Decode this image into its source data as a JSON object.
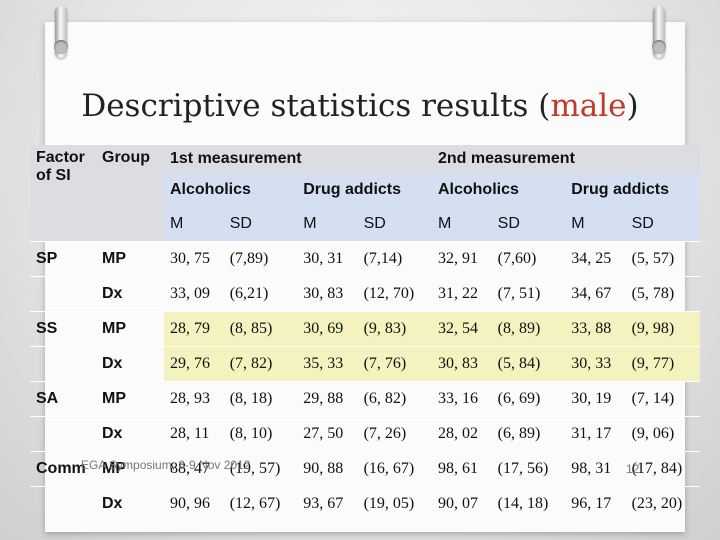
{
  "title": {
    "main": "Descriptive statistics results (",
    "highlight": "male",
    "end": ")"
  },
  "header": {
    "factor": "Factor of SI",
    "group": "Group",
    "m1": "1st measurement",
    "m2": "2nd measurement",
    "alc1": "Alcoholics",
    "drug1": "Drug addicts",
    "alc2": "Alcoholics",
    "drug2": "Drug addicts",
    "M": "M",
    "SD": "SD"
  },
  "rows": [
    {
      "factor": "SP",
      "group": "MP",
      "v": [
        "30, 75",
        "(7,89)",
        "30, 31",
        "(7,14)",
        "32, 91",
        "(7,60)",
        "34, 25",
        "(5, 57)"
      ]
    },
    {
      "factor": "",
      "group": "Dx",
      "v": [
        "33, 09",
        "(6,21)",
        "30, 83",
        "(12, 70)",
        "31, 22",
        "(7, 51)",
        "34, 67",
        "(5, 78)"
      ]
    },
    {
      "factor": "SS",
      "group": "MP",
      "v": [
        "28, 79",
        "(8, 85)",
        "30, 69",
        "(9, 83)",
        "32, 54",
        "(8, 89)",
        "33, 88",
        "(9, 98)"
      ]
    },
    {
      "factor": "",
      "group": "Dx",
      "v": [
        "29, 76",
        "(7, 82)",
        "35, 33",
        "(7, 76)",
        "30, 83",
        "(5, 84)",
        "30, 33",
        "(9, 77)"
      ]
    },
    {
      "factor": "SA",
      "group": "MP",
      "v": [
        "28, 93",
        "(8, 18)",
        "29, 88",
        "(6, 82)",
        "33, 16",
        "(6, 69)",
        "30, 19",
        "(7, 14)"
      ]
    },
    {
      "factor": "",
      "group": "Dx",
      "v": [
        "28, 11",
        "(8, 10)",
        "27, 50",
        "(7, 26)",
        "28, 02",
        "(6, 89)",
        "31, 17",
        "(9, 06)"
      ]
    },
    {
      "factor": "Comm",
      "group": "MP",
      "v": [
        "88, 47",
        "(19, 57)",
        "90, 88",
        "(16, 67)",
        "98, 61",
        "(17, 56)",
        "98, 31",
        "(17, 84)"
      ]
    },
    {
      "factor": "",
      "group": "Dx",
      "v": [
        "90, 96",
        "(12, 67)",
        "93, 67",
        "(19, 05)",
        "90, 07",
        "(14, 18)",
        "96, 17",
        "(23, 20)"
      ]
    }
  ],
  "footer": "EGA Symposium, 8-9 Nov 2012",
  "page": "12",
  "colors": {
    "highlight_red": "#c0392b",
    "header_gray": "#dcdde3",
    "header_blue": "#d4e0f1",
    "yellow_cell": "#f4f3c0"
  }
}
